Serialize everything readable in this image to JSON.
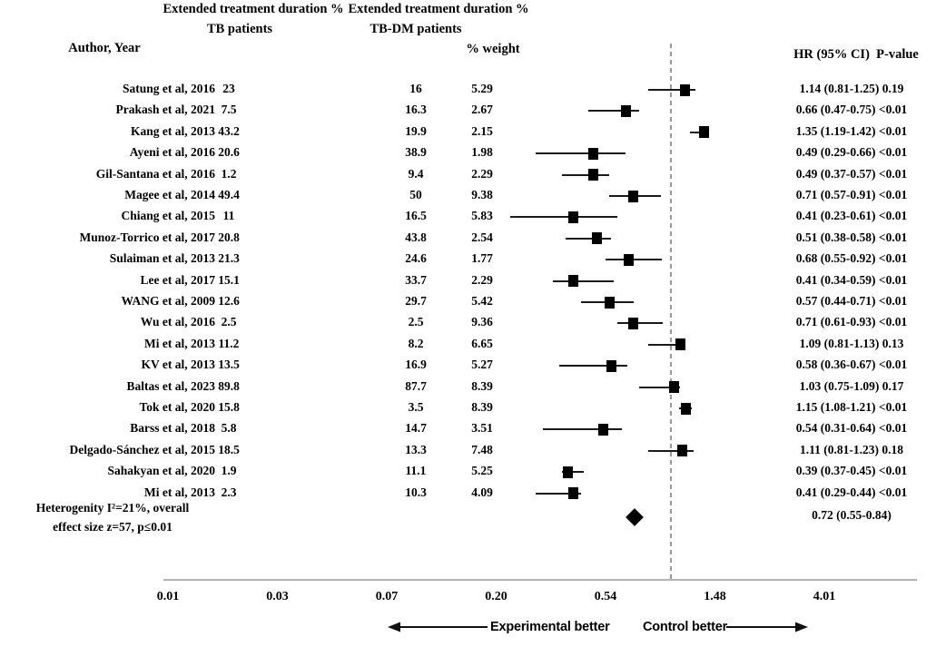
{
  "headers": {
    "tb_group_line1": "Extended treatment duration %",
    "tb_group_line2": "TB patients",
    "tbdm_group_line1": "Extended treatment duration %",
    "tbdm_group_line2": "TB-DM patients",
    "author": "Author, Year",
    "weight": "% weight",
    "hr": "HR (95% CI)  P-value"
  },
  "chart_data": {
    "type": "forest",
    "x_axis": {
      "scale": "log",
      "ticks": [
        "0.01",
        "0.03",
        "0.07",
        "0.20",
        "0.54",
        "1.48",
        "4.01"
      ],
      "tick_values": [
        0.01,
        0.03,
        0.07,
        0.2,
        0.54,
        1.48,
        4.01
      ],
      "reference_line_value": 1.0,
      "grid": false
    },
    "studies": [
      {
        "author": "Satung et al, 2016",
        "tb": "23",
        "tbdm": "16",
        "weight": "5.29",
        "hr": 1.14,
        "ci_low": 0.81,
        "ci_high": 1.25,
        "p": "0.19",
        "hr_text": "1.14 (0.81-1.25) 0.19"
      },
      {
        "author": "Prakash et al, 2021",
        "tb": "7.5",
        "tbdm": "16.3",
        "weight": "2.67",
        "hr": 0.66,
        "ci_low": 0.47,
        "ci_high": 0.75,
        "p": "<0.01",
        "hr_text": "0.66 (0.47-0.75) <0.01"
      },
      {
        "author": "Kang et al, 2013",
        "tb": "43.2",
        "tbdm": "19.9",
        "weight": "2.15",
        "hr": 1.35,
        "ci_low": 1.19,
        "ci_high": 1.42,
        "p": "<0.01",
        "hr_text": "1.35 (1.19-1.42) <0.01"
      },
      {
        "author": "Ayeni et al, 2016",
        "tb": "20.6",
        "tbdm": "38.9",
        "weight": "1.98",
        "hr": 0.49,
        "ci_low": 0.29,
        "ci_high": 0.66,
        "p": "<0.01",
        "hr_text": "0.49 (0.29-0.66) <0.01"
      },
      {
        "author": "Gil-Santana et al, 2016",
        "tb": "1.2",
        "tbdm": "9.4",
        "weight": "2.29",
        "hr": 0.49,
        "ci_low": 0.37,
        "ci_high": 0.57,
        "p": "<0.01",
        "hr_text": "0.49 (0.37-0.57) <0.01"
      },
      {
        "author": "Magee et al, 2014",
        "tb": "49.4",
        "tbdm": "50",
        "weight": "9.38",
        "hr": 0.71,
        "ci_low": 0.57,
        "ci_high": 0.91,
        "p": "<0.01",
        "hr_text": "0.71 (0.57-0.91) <0.01"
      },
      {
        "author": "Chiang et al, 2015",
        "tb": "11",
        "tbdm": "16.5",
        "weight": "5.83",
        "hr": 0.41,
        "ci_low": 0.23,
        "ci_high": 0.61,
        "p": "<0.01",
        "hr_text": "0.41 (0.23-0.61) <0.01"
      },
      {
        "author": "Munoz-Torrico et al, 2017",
        "tb": "20.8",
        "tbdm": "43.8",
        "weight": "2.54",
        "hr": 0.51,
        "ci_low": 0.38,
        "ci_high": 0.58,
        "p": "<0.01",
        "hr_text": "0.51 (0.38-0.58) <0.01"
      },
      {
        "author": "Sulaiman et al, 2013",
        "tb": "21.3",
        "tbdm": "24.6",
        "weight": "1.77",
        "hr": 0.68,
        "ci_low": 0.55,
        "ci_high": 0.92,
        "p": "<0.01",
        "hr_text": "0.68 (0.55-0.92) <0.01"
      },
      {
        "author": "Lee et al, 2017",
        "tb": "15.1",
        "tbdm": "33.7",
        "weight": "2.29",
        "hr": 0.41,
        "ci_low": 0.34,
        "ci_high": 0.59,
        "p": "<0.01",
        "hr_text": "0.41 (0.34-0.59) <0.01"
      },
      {
        "author": "WANG et al, 2009",
        "tb": "12.6",
        "tbdm": "29.7",
        "weight": "5.42",
        "hr": 0.57,
        "ci_low": 0.44,
        "ci_high": 0.71,
        "p": "<0.01",
        "hr_text": "0.57 (0.44-0.71) <0.01"
      },
      {
        "author": "Wu et al, 2016",
        "tb": "2.5",
        "tbdm": "2.5",
        "weight": "9.36",
        "hr": 0.71,
        "ci_low": 0.61,
        "ci_high": 0.93,
        "p": "<0.01",
        "hr_text": "0.71 (0.61-0.93) <0.01"
      },
      {
        "author": "Mi et al, 2013",
        "tb": "11.2",
        "tbdm": "8.2",
        "weight": "6.65",
        "hr": 1.09,
        "ci_low": 0.81,
        "ci_high": 1.13,
        "p": "0.13",
        "hr_text": "1.09 (0.81-1.13) 0.13"
      },
      {
        "author": "KV et al, 2013",
        "tb": "13.5",
        "tbdm": "16.9",
        "weight": "5.27",
        "hr": 0.58,
        "ci_low": 0.36,
        "ci_high": 0.67,
        "p": "<0.01",
        "hr_text": "0.58 (0.36-0.67) <0.01"
      },
      {
        "author": "Baltas et al, 2023",
        "tb": "89.8",
        "tbdm": "87.7",
        "weight": "8.39",
        "hr": 1.03,
        "ci_low": 0.75,
        "ci_high": 1.09,
        "p": "0.17",
        "hr_text": "1.03 (0.75-1.09) 0.17"
      },
      {
        "author": "Tok et al, 2020",
        "tb": "15.8",
        "tbdm": "3.5",
        "weight": "8.39",
        "hr": 1.15,
        "ci_low": 1.08,
        "ci_high": 1.21,
        "p": "<0.01",
        "hr_text": "1.15 (1.08-1.21) <0.01"
      },
      {
        "author": "Barss et al, 2018",
        "tb": "5.8",
        "tbdm": "14.7",
        "weight": "3.51",
        "hr": 0.54,
        "ci_low": 0.31,
        "ci_high": 0.64,
        "p": "<0.01",
        "hr_text": "0.54 (0.31-0.64) <0.01"
      },
      {
        "author": "Delgado-Sánchez et al, 2015",
        "tb": "18.5",
        "tbdm": "13.3",
        "weight": "7.48",
        "hr": 1.11,
        "ci_low": 0.81,
        "ci_high": 1.23,
        "p": "0.18",
        "hr_text": "1.11 (0.81-1.23) 0.18"
      },
      {
        "author": "Sahakyan et al, 2020",
        "tb": "1.9",
        "tbdm": "11.1",
        "weight": "5.25",
        "hr": 0.39,
        "ci_low": 0.37,
        "ci_high": 0.45,
        "p": "<0.01",
        "hr_text": "0.39 (0.37-0.45) <0.01"
      },
      {
        "author": "Mi et al, 2013",
        "tb": "2.3",
        "tbdm": "10.3",
        "weight": "4.09",
        "hr": 0.41,
        "ci_low": 0.29,
        "ci_high": 0.44,
        "p": "<0.01",
        "hr_text": "0.41 (0.29-0.44) <0.01"
      }
    ],
    "overall": {
      "note_line1": "Heterogenity I²=21%, overall",
      "note_line2": "effect size z=57, p≤0.01",
      "hr": 0.72,
      "ci_low": 0.55,
      "ci_high": 0.84,
      "hr_text": "0.72 (0.55-0.84)"
    },
    "footer": {
      "left_label": "Experimental better",
      "right_label": "Control better"
    },
    "colors": {
      "marker": "#000000",
      "whisker": "#1a1a1a",
      "reference_line": "#999999",
      "axis_line": "#b3b3b3",
      "text": "#000000"
    }
  }
}
